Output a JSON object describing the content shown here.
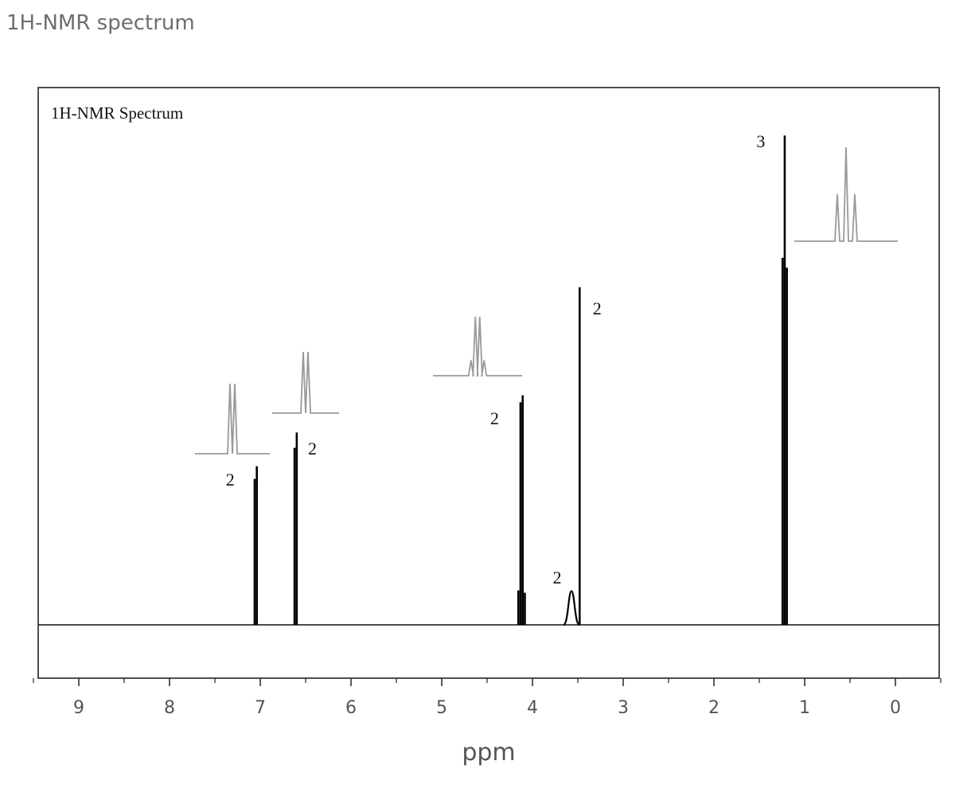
{
  "page": {
    "title": "1H-NMR spectrum"
  },
  "chart_data": {
    "type": "line",
    "title": "1H-NMR Spectrum",
    "xlabel": "ppm",
    "ylabel": "",
    "xlim": [
      9.5,
      -0.5
    ],
    "x_reversed": true,
    "xticks": [
      9,
      8,
      7,
      6,
      5,
      4,
      3,
      2,
      1,
      0
    ],
    "xtick_labels": [
      "9",
      "8",
      "7",
      "6",
      "5",
      "4",
      "3",
      "2",
      "1",
      "0"
    ],
    "grid": false,
    "peaks": [
      {
        "shift": 7.05,
        "height": 0.47,
        "multiplicity": "doublet",
        "integration": "2"
      },
      {
        "shift": 6.61,
        "height": 0.57,
        "multiplicity": "doublet",
        "integration": "2"
      },
      {
        "shift": 4.12,
        "height": 0.68,
        "multiplicity": "quartet",
        "integration": "2"
      },
      {
        "shift": 3.57,
        "height": 0.1,
        "multiplicity": "broad singlet",
        "integration": "2"
      },
      {
        "shift": 3.48,
        "height": 1.0,
        "multiplicity": "singlet",
        "integration": "2"
      },
      {
        "shift": 1.22,
        "height": 1.45,
        "multiplicity": "triplet",
        "integration": "3"
      }
    ]
  }
}
